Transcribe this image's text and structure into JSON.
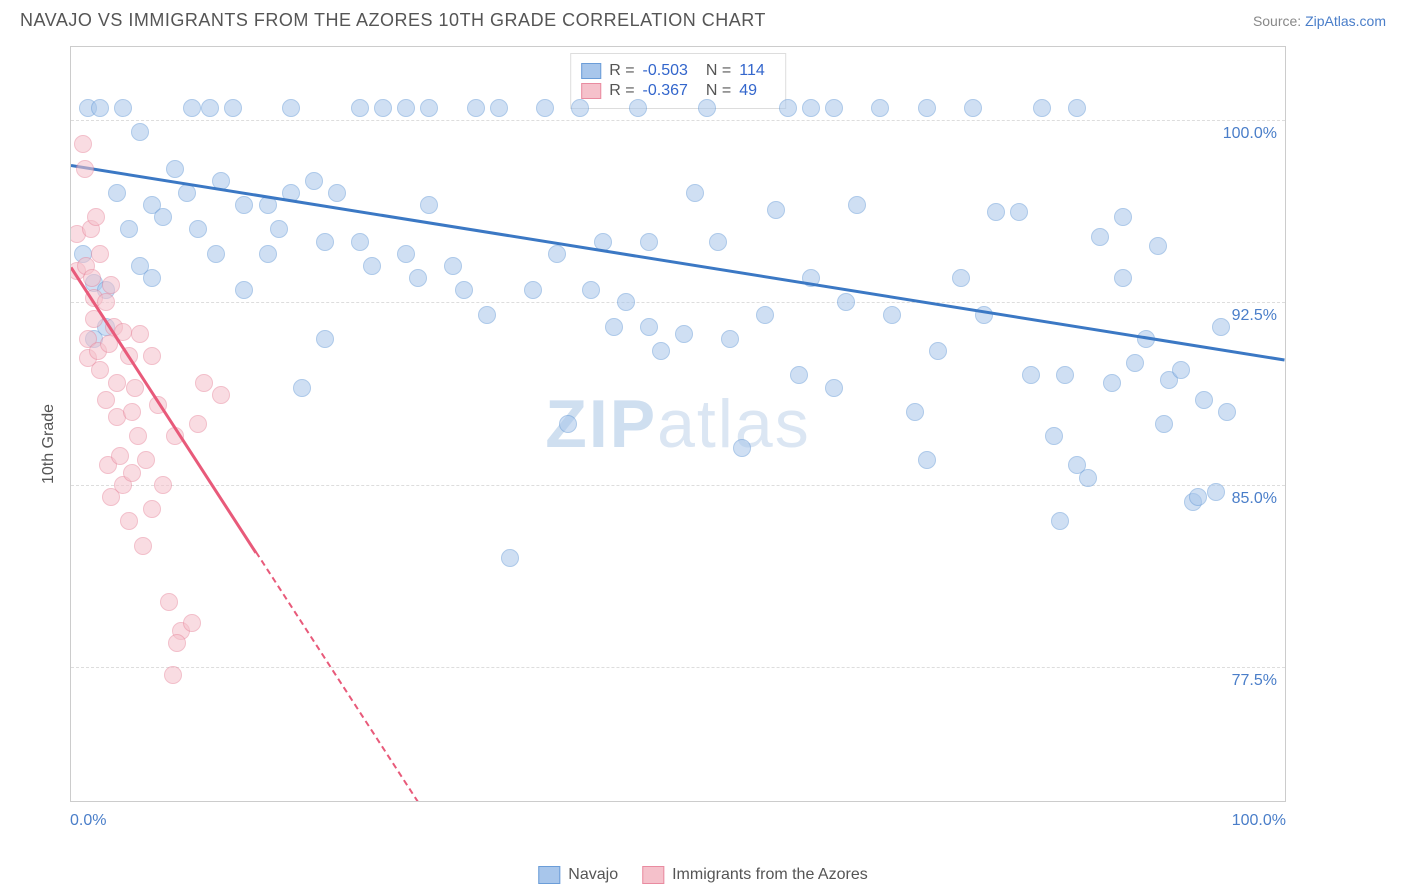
{
  "title": "NAVAJO VS IMMIGRANTS FROM THE AZORES 10TH GRADE CORRELATION CHART",
  "source_prefix": "Source: ",
  "source_link": "ZipAtlas.com",
  "ylabel": "10th Grade",
  "watermark_a": "ZIP",
  "watermark_b": "atlas",
  "x_min_label": "0.0%",
  "x_max_label": "100.0%",
  "chart": {
    "type": "scatter",
    "xlim": [
      0,
      105
    ],
    "ylim": [
      72,
      103
    ],
    "ytick_values": [
      77.5,
      85.0,
      92.5,
      100.0
    ],
    "ytick_labels": [
      "77.5%",
      "85.0%",
      "92.5%",
      "100.0%"
    ],
    "xtick_values": [
      0,
      20,
      40,
      60,
      80,
      100
    ],
    "grid_color": "#dddddd",
    "border_color": "#cccccc",
    "background_color": "#ffffff",
    "point_radius": 9,
    "point_opacity": 0.55,
    "series": [
      {
        "name": "Navajo",
        "color_fill": "#a8c6eb",
        "color_stroke": "#6b9dd8",
        "trend_color": "#3b78c4",
        "trend": {
          "x1": 0,
          "y1": 98.2,
          "x2": 105,
          "y2": 90.2,
          "dash_after_x": null
        },
        "R": "-0.503",
        "N": "114",
        "points": [
          [
            1,
            94.5
          ],
          [
            1.5,
            100.5
          ],
          [
            2,
            93.3
          ],
          [
            2,
            91
          ],
          [
            2.5,
            100.5
          ],
          [
            3,
            93
          ],
          [
            3,
            91.5
          ],
          [
            4,
            97
          ],
          [
            4.5,
            100.5
          ],
          [
            5,
            95.5
          ],
          [
            6,
            94
          ],
          [
            6,
            99.5
          ],
          [
            7,
            93.5
          ],
          [
            7,
            96.5
          ],
          [
            8,
            96
          ],
          [
            9,
            98
          ],
          [
            10,
            97
          ],
          [
            10.5,
            100.5
          ],
          [
            11,
            95.5
          ],
          [
            12,
            100.5
          ],
          [
            12.5,
            94.5
          ],
          [
            13,
            97.5
          ],
          [
            14,
            100.5
          ],
          [
            15,
            96.5
          ],
          [
            15,
            93
          ],
          [
            17,
            94.5
          ],
          [
            17,
            96.5
          ],
          [
            18,
            95.5
          ],
          [
            19,
            97
          ],
          [
            19,
            100.5
          ],
          [
            20,
            89
          ],
          [
            21,
            97.5
          ],
          [
            22,
            95
          ],
          [
            22,
            91
          ],
          [
            23,
            97
          ],
          [
            25,
            100.5
          ],
          [
            25,
            95
          ],
          [
            26,
            94
          ],
          [
            27,
            100.5
          ],
          [
            29,
            100.5
          ],
          [
            29,
            94.5
          ],
          [
            30,
            93.5
          ],
          [
            31,
            96.5
          ],
          [
            31,
            100.5
          ],
          [
            33,
            94
          ],
          [
            34,
            93
          ],
          [
            35,
            100.5
          ],
          [
            36,
            92
          ],
          [
            37,
            100.5
          ],
          [
            38,
            82
          ],
          [
            40,
            93
          ],
          [
            41,
            100.5
          ],
          [
            42,
            94.5
          ],
          [
            43,
            87.5
          ],
          [
            44,
            100.5
          ],
          [
            45,
            93
          ],
          [
            46,
            95
          ],
          [
            47,
            91.5
          ],
          [
            48,
            92.5
          ],
          [
            49,
            100.5
          ],
          [
            50,
            91.5
          ],
          [
            50,
            95
          ],
          [
            51,
            90.5
          ],
          [
            53,
            91.2
          ],
          [
            54,
            97
          ],
          [
            55,
            100.5
          ],
          [
            56,
            95
          ],
          [
            57,
            91
          ],
          [
            58,
            86.5
          ],
          [
            60,
            92
          ],
          [
            61,
            96.3
          ],
          [
            62,
            100.5
          ],
          [
            63,
            89.5
          ],
          [
            64,
            100.5
          ],
          [
            64,
            93.5
          ],
          [
            66,
            89
          ],
          [
            66,
            100.5
          ],
          [
            67,
            92.5
          ],
          [
            68,
            96.5
          ],
          [
            70,
            100.5
          ],
          [
            71,
            92
          ],
          [
            73,
            88
          ],
          [
            74,
            100.5
          ],
          [
            74,
            86
          ],
          [
            75,
            90.5
          ],
          [
            77,
            93.5
          ],
          [
            78,
            100.5
          ],
          [
            79,
            92
          ],
          [
            80,
            96.2
          ],
          [
            82,
            96.2
          ],
          [
            83,
            89.5
          ],
          [
            84,
            100.5
          ],
          [
            85,
            87
          ],
          [
            85.5,
            83.5
          ],
          [
            86,
            89.5
          ],
          [
            87,
            85.8
          ],
          [
            87,
            100.5
          ],
          [
            88,
            85.3
          ],
          [
            89,
            95.2
          ],
          [
            90,
            89.2
          ],
          [
            91,
            96
          ],
          [
            91,
            93.5
          ],
          [
            92,
            90
          ],
          [
            93,
            91
          ],
          [
            94,
            94.8
          ],
          [
            94.5,
            87.5
          ],
          [
            95,
            89.3
          ],
          [
            96,
            89.7
          ],
          [
            97,
            84.3
          ],
          [
            97.5,
            84.5
          ],
          [
            98,
            88.5
          ],
          [
            99,
            84.7
          ],
          [
            99.5,
            91.5
          ],
          [
            100,
            88
          ]
        ]
      },
      {
        "name": "Immigrants from the Azores",
        "color_fill": "#f5c1cb",
        "color_stroke": "#e98ba0",
        "trend_color": "#e85a7a",
        "trend": {
          "x1": 0,
          "y1": 94.0,
          "x2": 30,
          "y2": 72.0,
          "dash_after_x": 16
        },
        "R": "-0.367",
        "N": "49",
        "points": [
          [
            0.5,
            95.3
          ],
          [
            0.5,
            93.8
          ],
          [
            1,
            99
          ],
          [
            1.2,
            98
          ],
          [
            1.3,
            94
          ],
          [
            1.5,
            91
          ],
          [
            1.5,
            90.2
          ],
          [
            1.7,
            95.5
          ],
          [
            1.8,
            93.5
          ],
          [
            2,
            92.7
          ],
          [
            2,
            91.8
          ],
          [
            2.2,
            96
          ],
          [
            2.3,
            90.5
          ],
          [
            2.5,
            89.7
          ],
          [
            2.5,
            94.5
          ],
          [
            3,
            88.5
          ],
          [
            3,
            92.5
          ],
          [
            3.2,
            85.8
          ],
          [
            3.3,
            90.8
          ],
          [
            3.5,
            93.2
          ],
          [
            3.5,
            84.5
          ],
          [
            3.7,
            91.5
          ],
          [
            4,
            89.2
          ],
          [
            4,
            87.8
          ],
          [
            4.2,
            86.2
          ],
          [
            4.5,
            91.3
          ],
          [
            4.5,
            85
          ],
          [
            5,
            90.3
          ],
          [
            5,
            83.5
          ],
          [
            5.3,
            88
          ],
          [
            5.3,
            85.5
          ],
          [
            5.5,
            89
          ],
          [
            5.8,
            87
          ],
          [
            6,
            91.2
          ],
          [
            6.2,
            82.5
          ],
          [
            6.5,
            86
          ],
          [
            7,
            90.3
          ],
          [
            7,
            84
          ],
          [
            7.5,
            88.3
          ],
          [
            8,
            85
          ],
          [
            8.5,
            80.2
          ],
          [
            9,
            87
          ],
          [
            9.5,
            79
          ],
          [
            10.5,
            79.3
          ],
          [
            11,
            87.5
          ],
          [
            11.5,
            89.2
          ],
          [
            13,
            88.7
          ],
          [
            8.8,
            77.2
          ],
          [
            9.2,
            78.5
          ]
        ]
      }
    ]
  },
  "stats_labels": {
    "R": "R =",
    "N": "N ="
  },
  "legend": [
    {
      "label": "Navajo",
      "fill": "#a8c6eb",
      "stroke": "#6b9dd8"
    },
    {
      "label": "Immigrants from the Azores",
      "fill": "#f5c1cb",
      "stroke": "#e98ba0"
    }
  ]
}
